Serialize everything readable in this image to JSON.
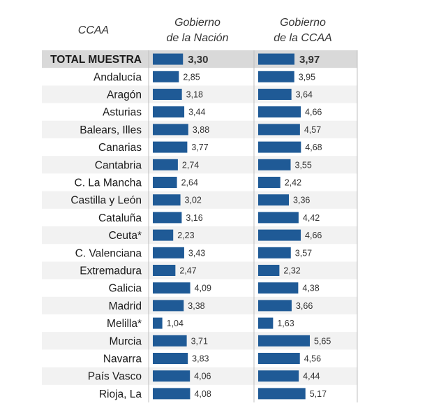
{
  "chart_data": {
    "type": "bar",
    "orientation": "horizontal",
    "header_label": "CCAA",
    "categories": [
      "TOTAL MUESTRA",
      "Andalucía",
      "Aragón",
      "Asturias",
      "Balears, Illes",
      "Canarias",
      "Cantabria",
      "C. La Mancha",
      "Castilla y León",
      "Cataluña",
      "Ceuta*",
      "C. Valenciana",
      "Extremadura",
      "Galicia",
      "Madrid",
      "Melilla*",
      "Murcia",
      "Navarra",
      "País Vasco",
      "Rioja, La"
    ],
    "series": [
      {
        "name": "Gobierno de la Nación",
        "name_lines": [
          "Gobierno",
          "de la Nación"
        ],
        "values": [
          3.3,
          2.85,
          3.18,
          3.44,
          3.88,
          3.77,
          2.74,
          2.64,
          3.02,
          3.16,
          2.23,
          3.43,
          2.47,
          4.09,
          3.38,
          1.04,
          3.71,
          3.83,
          4.06,
          4.08
        ],
        "labels": [
          "3,30",
          "2,85",
          "3,18",
          "3,44",
          "3,88",
          "3,77",
          "2,74",
          "2,64",
          "3,02",
          "3,16",
          "2,23",
          "3,43",
          "2,47",
          "4,09",
          "3,38",
          "1,04",
          "3,71",
          "3,83",
          "4,06",
          "4,08"
        ]
      },
      {
        "name": "Gobierno de la CCAA",
        "name_lines": [
          "Gobierno",
          "de la CCAA"
        ],
        "values": [
          3.97,
          3.95,
          3.64,
          4.66,
          4.57,
          4.68,
          3.55,
          2.42,
          3.36,
          4.42,
          4.66,
          3.57,
          2.32,
          4.38,
          3.66,
          1.63,
          5.65,
          4.56,
          4.44,
          5.17
        ],
        "labels": [
          "3,97",
          "3,95",
          "3,64",
          "4,66",
          "4,57",
          "4,68",
          "3,55",
          "2,42",
          "3,36",
          "4,42",
          "4,66",
          "3,57",
          "2,32",
          "4,38",
          "3,66",
          "1,63",
          "5,65",
          "4,56",
          "4,44",
          "5,17"
        ]
      }
    ],
    "highlighted_category": "TOTAL MUESTRA",
    "bar_color": "#1f5a96",
    "highlight_row_color": "#d9d9d9",
    "stripe_color": "#f2f2f2",
    "separator_color": "#bfbfbf"
  }
}
